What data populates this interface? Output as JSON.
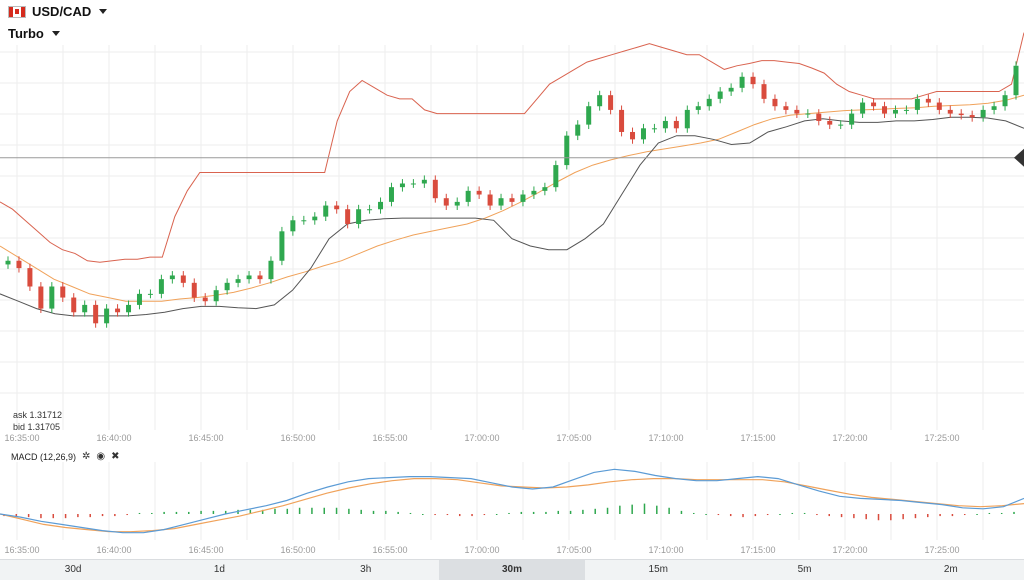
{
  "header": {
    "pair": "USD/CAD",
    "mode": "Turbo"
  },
  "quote": {
    "ask_label": "ask 1.31712",
    "bid_label": "bid 1.31705"
  },
  "macd": {
    "label": "MACD (12,26,9)"
  },
  "timeframes": [
    "30d",
    "1d",
    "3h",
    "30m",
    "15m",
    "5m",
    "2m"
  ],
  "active_timeframe": "30m",
  "colors": {
    "up": "#2fa84f",
    "down": "#d94b3d",
    "upper_band": "#d9634f",
    "lower_band": "#555555",
    "mid_band": "#f0a25a",
    "macd_line": "#5b9bd5",
    "signal_line": "#f0a25a",
    "grid": "#eeeeee"
  },
  "chart_data": {
    "type": "candlestick",
    "instrument": "USD/CAD",
    "x_ticks": [
      "16:35:00",
      "16:40:00",
      "16:45:00",
      "16:50:00",
      "16:55:00",
      "17:00:00",
      "17:05:00",
      "17:10:00",
      "17:15:00",
      "17:20:00",
      "17:25:00"
    ],
    "price_range": [
      1.3134,
      1.3187
    ],
    "reference_price": 1.3171,
    "close": [
      1.3157,
      1.3156,
      1.31535,
      1.31505,
      1.31535,
      1.3152,
      1.315,
      1.3151,
      1.31485,
      1.31505,
      1.315,
      1.3151,
      1.31525,
      1.31525,
      1.31545,
      1.3155,
      1.3154,
      1.3152,
      1.31515,
      1.3153,
      1.3154,
      1.31545,
      1.3155,
      1.31545,
      1.3157,
      1.3161,
      1.31625,
      1.31625,
      1.3163,
      1.31645,
      1.3164,
      1.3162,
      1.3164,
      1.3164,
      1.3165,
      1.3167,
      1.31675,
      1.31675,
      1.3168,
      1.31655,
      1.31645,
      1.3165,
      1.31665,
      1.3166,
      1.31645,
      1.31655,
      1.3165,
      1.3166,
      1.31665,
      1.3167,
      1.317,
      1.3174,
      1.31755,
      1.3178,
      1.31795,
      1.31775,
      1.31745,
      1.31735,
      1.3175,
      1.3175,
      1.3176,
      1.3175,
      1.31775,
      1.3178,
      1.3179,
      1.318,
      1.31805,
      1.3182,
      1.3181,
      1.3179,
      1.3178,
      1.31775,
      1.3177,
      1.3177,
      1.3176,
      1.31755,
      1.31755,
      1.3177,
      1.31785,
      1.3178,
      1.3177,
      1.31775,
      1.31775,
      1.3179,
      1.31785,
      1.31775,
      1.3177,
      1.31768,
      1.31765,
      1.31775,
      1.3178,
      1.31795,
      1.31835
    ],
    "upper_band": [
      1.3165,
      1.3164,
      1.31625,
      1.3161,
      1.31595,
      1.31585,
      1.3158,
      1.3157,
      1.31568,
      1.3157,
      1.31572,
      1.31572,
      1.31575,
      1.31575,
      1.3163,
      1.31665,
      1.3169,
      1.3169,
      1.3169,
      1.3169,
      1.3169,
      1.3169,
      1.3169,
      1.3169,
      1.3169,
      1.3169,
      1.3169,
      1.3176,
      1.318,
      1.31815,
      1.31805,
      1.31795,
      1.3179,
      1.3179,
      1.31775,
      1.3177,
      1.3177,
      1.3177,
      1.3177,
      1.3177,
      1.3177,
      1.3177,
      1.3177,
      1.3179,
      1.3181,
      1.3182,
      1.3183,
      1.3184,
      1.31845,
      1.3185,
      1.31855,
      1.3186,
      1.31865,
      1.3186,
      1.31855,
      1.3185,
      1.3185,
      1.3184,
      1.3183,
      1.31835,
      1.31838,
      1.31842,
      1.31842,
      1.3184,
      1.31838,
      1.31832,
      1.31825,
      1.3181,
      1.318,
      1.31795,
      1.3179,
      1.3179,
      1.3179,
      1.3179,
      1.31795,
      1.318,
      1.318,
      1.318,
      1.318,
      1.318,
      1.318,
      1.3181,
      1.3188
    ],
    "mid_band": [
      1.3159,
      1.31575,
      1.3156,
      1.31545,
      1.31535,
      1.31525,
      1.3152,
      1.31515,
      1.31515,
      1.31515,
      1.31518,
      1.3152,
      1.31523,
      1.31527,
      1.31533,
      1.3154,
      1.31548,
      1.31555,
      1.31563,
      1.3157,
      1.3158,
      1.3159,
      1.31598,
      1.31605,
      1.3161,
      1.31615,
      1.3162,
      1.31628,
      1.31638,
      1.3165,
      1.31663,
      1.31677,
      1.3169,
      1.317,
      1.31707,
      1.31713,
      1.31718,
      1.31722,
      1.31726,
      1.3173,
      1.31735,
      1.31745,
      1.31755,
      1.31763,
      1.31768,
      1.3177,
      1.31772,
      1.31774,
      1.31775,
      1.31776,
      1.31777,
      1.31778,
      1.3178,
      1.31781,
      1.31782,
      1.31784,
      1.31788,
      1.31795
    ],
    "lower_band": [
      1.31525,
      1.31515,
      1.31505,
      1.31498,
      1.31495,
      1.31495,
      1.31495,
      1.31495,
      1.31497,
      1.315,
      1.31505,
      1.31508,
      1.31508,
      1.31506,
      1.31505,
      1.3151,
      1.3153,
      1.3156,
      1.316,
      1.3162,
      1.31625,
      1.31627,
      1.31628,
      1.31628,
      1.31628,
      1.31628,
      1.31628,
      1.31625,
      1.316,
      1.3159,
      1.31585,
      1.31585,
      1.316,
      1.3162,
      1.3166,
      1.317,
      1.3173,
      1.3174,
      1.3174,
      1.31735,
      1.31728,
      1.3173,
      1.31745,
      1.31752,
      1.3176,
      1.31763,
      1.3176,
      1.31758,
      1.31758,
      1.3176,
      1.3176,
      1.31762,
      1.31765,
      1.31765,
      1.31764,
      1.3176,
      1.3175
    ],
    "macd_line": [
      0.0,
      -0.3,
      -0.7,
      -1.0,
      -1.3,
      -1.6,
      -1.8,
      -1.8,
      -1.5,
      -1.0,
      -0.5,
      0.0,
      0.4,
      0.8,
      1.3,
      2.0,
      2.6,
      3.1,
      3.4,
      3.5,
      3.6,
      3.6,
      3.5,
      3.4,
      3.0,
      2.6,
      2.4,
      2.6,
      3.3,
      4.0,
      4.3,
      4.1,
      3.7,
      3.4,
      3.2,
      3.2,
      3.4,
      3.6,
      3.4,
      2.8,
      2.2,
      1.7,
      1.5,
      1.4,
      1.3,
      1.1,
      0.9,
      0.6,
      0.5,
      0.7,
      1.5
    ],
    "signal_line": [
      0.0,
      -0.5,
      -1.0,
      -1.3,
      -1.5,
      -1.7,
      -1.7,
      -1.6,
      -1.4,
      -1.0,
      -0.6,
      -0.2,
      0.3,
      0.8,
      1.4,
      2.0,
      2.5,
      2.9,
      3.2,
      3.4,
      3.4,
      3.3,
      3.0,
      2.7,
      2.6,
      2.5,
      2.6,
      2.8,
      3.1,
      3.3,
      3.4,
      3.4,
      3.3,
      3.3,
      3.3,
      3.3,
      3.1,
      2.7,
      2.3,
      1.9,
      1.6,
      1.4,
      1.2,
      1.0,
      0.8,
      0.7,
      0.8,
      1.0
    ],
    "histogram": [
      -0.2,
      -0.3,
      -0.3,
      -0.4,
      -0.4,
      -0.4,
      -0.3,
      -0.3,
      -0.2,
      -0.2,
      -0.1,
      0.1,
      0.1,
      0.2,
      0.2,
      0.2,
      0.3,
      0.3,
      0.3,
      0.4,
      0.4,
      0.4,
      0.5,
      0.5,
      0.6,
      0.6,
      0.6,
      0.6,
      0.5,
      0.4,
      0.3,
      0.3,
      0.2,
      0.1,
      0.0,
      -0.1,
      -0.1,
      -0.2,
      -0.2,
      -0.1,
      0.0,
      0.1,
      0.2,
      0.2,
      0.2,
      0.3,
      0.3,
      0.4,
      0.5,
      0.6,
      0.8,
      0.9,
      1.0,
      0.8,
      0.6,
      0.3,
      0.1,
      0.0,
      -0.1,
      -0.2,
      -0.3,
      -0.2,
      -0.1,
      0.0,
      0.1,
      0.1,
      -0.1,
      -0.2,
      -0.3,
      -0.4,
      -0.5,
      -0.6,
      -0.6,
      -0.5,
      -0.4,
      -0.3,
      -0.2,
      -0.2,
      -0.1,
      0.0,
      0.1,
      0.1,
      0.2
    ],
    "macd_range": [
      -2.5,
      5.0
    ]
  }
}
